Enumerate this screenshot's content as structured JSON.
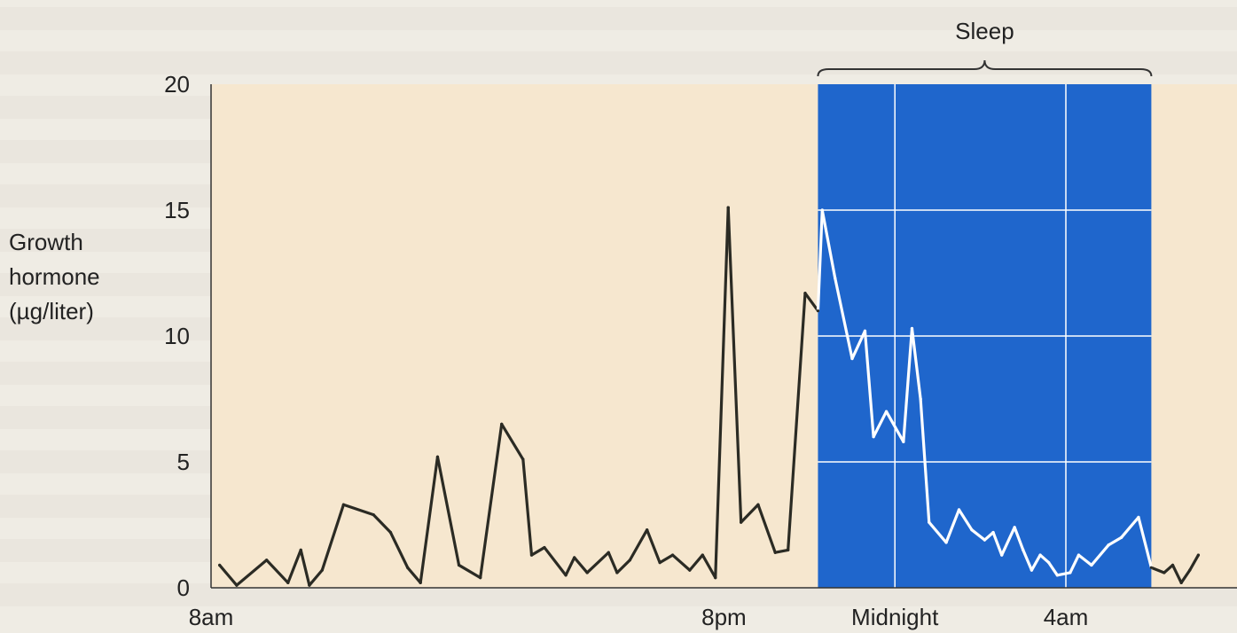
{
  "chart_data": {
    "type": "line",
    "title": "",
    "xlabel": "",
    "ylabel_lines": [
      "Growth",
      "hormone",
      "(µg/liter)"
    ],
    "x_tick_labels": [
      {
        "x": 0,
        "label": "8am"
      },
      {
        "x": 12,
        "label": "8pm"
      },
      {
        "x": 16,
        "label": "Midnight"
      },
      {
        "x": 20,
        "label": "4am"
      }
    ],
    "y_ticks": [
      0,
      5,
      10,
      15,
      20
    ],
    "xlim": [
      0,
      23.1
    ],
    "ylim": [
      0,
      20
    ],
    "sleep_band": {
      "label": "Sleep",
      "start": 14.2,
      "end": 22.0
    },
    "grid": {
      "vertical_hours": [
        12,
        16,
        20
      ],
      "horizontal": [
        5,
        10,
        15
      ],
      "shown_in_band": true
    },
    "series": [
      {
        "x": [
          0.2,
          0.6,
          1.3,
          1.8,
          2.1,
          2.3,
          2.6,
          3.1,
          3.8,
          4.2,
          4.6,
          4.9,
          5.3,
          5.8,
          6.3,
          6.8,
          7.3,
          7.5,
          7.8,
          8.3,
          8.5,
          8.8,
          9.3,
          9.5,
          9.8,
          10.2,
          10.5,
          10.8,
          11.2,
          11.5,
          11.8,
          12.1,
          12.4,
          12.8,
          13.2,
          13.5,
          13.9,
          14.2,
          14.3,
          14.6,
          15.0,
          15.3,
          15.5,
          15.8,
          16.2,
          16.4,
          16.6,
          16.8,
          17.2,
          17.5,
          17.8,
          18.1,
          18.3,
          18.5,
          18.8,
          19.0,
          19.2,
          19.4,
          19.6,
          19.8,
          20.1,
          20.3,
          20.6,
          21.0,
          21.3,
          21.7,
          22.0,
          22.3,
          22.5,
          22.7,
          22.9,
          23.1
        ],
        "y": [
          0.9,
          0.1,
          1.1,
          0.2,
          1.5,
          0.1,
          0.7,
          3.3,
          2.9,
          2.2,
          0.8,
          0.2,
          5.2,
          0.9,
          0.4,
          6.5,
          5.1,
          1.3,
          1.6,
          0.5,
          1.2,
          0.6,
          1.4,
          0.6,
          1.1,
          2.3,
          1.0,
          1.3,
          0.7,
          1.3,
          0.4,
          15.1,
          2.6,
          3.3,
          1.4,
          1.5,
          11.7,
          11.0,
          15.0,
          12.3,
          9.1,
          10.2,
          6.0,
          7.0,
          5.8,
          10.3,
          7.5,
          2.6,
          1.8,
          3.1,
          2.3,
          1.9,
          2.2,
          1.3,
          2.4,
          1.5,
          0.7,
          1.3,
          1.0,
          0.5,
          0.6,
          1.3,
          0.9,
          1.7,
          2.0,
          2.8,
          0.8,
          0.6,
          0.9,
          0.2,
          0.7,
          1.3
        ]
      }
    ],
    "colors": {
      "plot_bg": "#f6e7cf",
      "sleep_band": "#1f66cc",
      "line_awake": "#2b2b24",
      "line_sleep": "#ffffff",
      "grid_line": "#ffffff"
    }
  }
}
